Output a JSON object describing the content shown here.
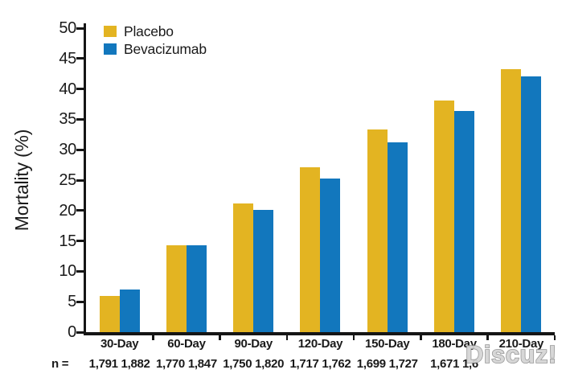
{
  "figure": {
    "background": "#ffffff"
  },
  "y_axis": {
    "label": "Mortality (%)",
    "ticks": [
      "50",
      "45",
      "40",
      "35",
      "30",
      "25",
      "20",
      "15",
      "10",
      "5",
      "0"
    ]
  },
  "legend": {
    "items": [
      {
        "label": "Placebo",
        "color": "#E3B422"
      },
      {
        "label": "Bevacizumab",
        "color": "#1277BD"
      }
    ]
  },
  "chart_data": {
    "type": "bar",
    "title": "",
    "xlabel": "",
    "ylabel": "Mortality (%)",
    "ylim": [
      0,
      50
    ],
    "ytick_step": 5,
    "grid": false,
    "legend_position": "top-left",
    "categories": [
      "30-Day",
      "60-Day",
      "90-Day",
      "120-Day",
      "150-Day",
      "180-Day",
      "210-Day"
    ],
    "series": [
      {
        "name": "Placebo",
        "color": "#E3B422",
        "values": [
          6.0,
          14.3,
          21.2,
          27.1,
          33.3,
          38.1,
          43.3
        ]
      },
      {
        "name": "Bevacizumab",
        "color": "#1277BD",
        "values": [
          7.0,
          14.3,
          20.1,
          25.3,
          31.2,
          36.4,
          42.1
        ]
      }
    ]
  },
  "n_row": {
    "prefix": "n =",
    "values": [
      "1,791 1,882",
      "1,770 1,847",
      "1,750 1,820",
      "1,717 1,762",
      "1,699 1,727",
      "1,671 1,6",
      ""
    ]
  },
  "watermark": {
    "text": "Discuz!",
    "fill": "#d4d4d4",
    "outline": "#8f8f8f"
  }
}
